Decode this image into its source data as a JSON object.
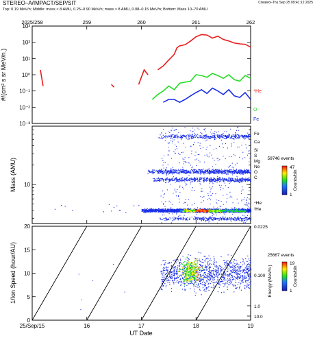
{
  "header": {
    "title": "STEREO–A/IMPACT/SEP/SIT",
    "created": "Created–Thu Sep 25 09:41:12 2025",
    "subtitle": "Top: 0.19 MeV/n; Middle: mass < 8 AMU, 0.25–0.90 MeV/n; mass > 8 AMU, 0.08–0.15 MeV/n; Bottom: Mass 10–70 AMU"
  },
  "chart_data": [
    {
      "type": "line",
      "panel": "top",
      "ylabel": "#/(cm² s sr MeV/n.)",
      "yscale": "log",
      "ylim": [
        0.001,
        1000
      ],
      "yticks": [
        "10⁻³",
        "10⁻²",
        "10⁻¹",
        "10⁰",
        "10¹",
        "10²",
        "10³"
      ],
      "top_axis_ticks": [
        "2025/258",
        "259",
        "260",
        "261",
        "262"
      ],
      "x_range": [
        "2025-09-15",
        "2025-09-19"
      ],
      "series": [
        {
          "name": "⁴He",
          "color": "#e81c1c",
          "segments": [
            [
              [
                15.15,
                2.0
              ],
              [
                15.2,
                0.2
              ]
            ],
            [
              [
                16.45,
                0.25
              ],
              [
                16.5,
                0.17
              ]
            ],
            [
              [
                16.95,
                0.25
              ],
              [
                17.05,
                2.0
              ],
              [
                17.12,
                1.0
              ]
            ],
            [
              [
                17.3,
                2.0
              ],
              [
                17.4,
                3.5
              ],
              [
                17.5,
                8
              ],
              [
                17.55,
                12
              ],
              [
                17.6,
                18
              ],
              [
                17.65,
                45
              ],
              [
                17.7,
                60
              ],
              [
                17.8,
                70
              ],
              [
                17.9,
                120
              ],
              [
                18.0,
                220
              ],
              [
                18.1,
                300
              ],
              [
                18.2,
                280
              ],
              [
                18.3,
                180
              ],
              [
                18.4,
                240
              ],
              [
                18.5,
                150
              ],
              [
                18.6,
                120
              ],
              [
                18.7,
                90
              ],
              [
                18.8,
                80
              ],
              [
                18.9,
                75
              ],
              [
                19.0,
                50
              ]
            ]
          ]
        },
        {
          "name": "O",
          "color": "#22dd22",
          "segments": [
            [
              [
                17.2,
                0.03
              ],
              [
                17.3,
                0.06
              ],
              [
                17.4,
                0.1
              ],
              [
                17.5,
                0.2
              ],
              [
                17.6,
                0.12
              ],
              [
                17.7,
                0.3
              ],
              [
                17.8,
                0.35
              ],
              [
                17.9,
                0.4
              ],
              [
                18.0,
                1.0
              ],
              [
                18.1,
                0.9
              ],
              [
                18.2,
                0.7
              ],
              [
                18.3,
                1.2
              ],
              [
                18.4,
                0.9
              ],
              [
                18.5,
                0.6
              ],
              [
                18.6,
                1.0
              ],
              [
                18.7,
                0.5
              ],
              [
                18.8,
                0.4
              ],
              [
                18.9,
                0.9
              ],
              [
                19.0,
                0.6
              ]
            ]
          ]
        },
        {
          "name": "Fe",
          "color": "#1a2ee8",
          "segments": [
            [
              [
                17.4,
                0.02
              ],
              [
                17.5,
                0.03
              ],
              [
                17.6,
                0.03
              ],
              [
                17.7,
                0.02
              ],
              [
                17.8,
                0.03
              ],
              [
                17.9,
                0.05
              ],
              [
                18.0,
                0.08
              ],
              [
                18.1,
                0.12
              ],
              [
                18.2,
                0.07
              ],
              [
                18.3,
                0.15
              ],
              [
                18.4,
                0.1
              ],
              [
                18.5,
                0.06
              ],
              [
                18.6,
                0.12
              ],
              [
                18.7,
                0.05
              ],
              [
                18.8,
                0.04
              ],
              [
                18.9,
                0.08
              ],
              [
                19.0,
                0.03
              ]
            ]
          ]
        }
      ]
    },
    {
      "type": "scatter",
      "panel": "middle",
      "ylabel": "Mass (AMU)",
      "yscale": "log",
      "ylim": [
        2.5,
        80
      ],
      "yticks": [
        "10"
      ],
      "species_labels": [
        "Fe",
        "Ca",
        "Si",
        "S",
        "Mg",
        "Ne",
        "O",
        "C",
        "⁴He",
        "³He"
      ],
      "colorbar": {
        "events": "59746 events",
        "label": "Counts/bin",
        "min": "1",
        "max": "47"
      },
      "bands": [
        {
          "name": "Fe",
          "mass": 56,
          "x_start": 17.3,
          "x_end": 19.0,
          "density": 0.5
        },
        {
          "name": "O",
          "mass": 16,
          "x_start": 17.1,
          "x_end": 19.0,
          "density": 1.0
        },
        {
          "name": "C",
          "mass": 12,
          "x_start": 17.2,
          "x_end": 19.0,
          "density": 0.7
        },
        {
          "name": "4He",
          "mass": 4,
          "x_start": 17.0,
          "x_end": 19.0,
          "density": 3.0
        },
        {
          "name": "3He",
          "mass": 3,
          "x_start": 17.3,
          "x_end": 19.0,
          "density": 0.4
        }
      ]
    },
    {
      "type": "scatter",
      "panel": "bottom",
      "xlabel": "UT Date",
      "ylabel": "1/Ion Speed (hour/AU)",
      "ylim": [
        0,
        20
      ],
      "yticks": [
        "0",
        "5",
        "10",
        "15",
        "20"
      ],
      "xticks": [
        "25/Sep/15",
        "16",
        "17",
        "18",
        "19"
      ],
      "right_axis": {
        "label": "Energy (MeV/n.)",
        "ticks": [
          "0.0225",
          "0.100",
          "1.0",
          "10.0"
        ]
      },
      "colorbar": {
        "events": "25667 events",
        "label": "Counts/bin",
        "min": "1",
        "max": "19"
      },
      "velocity_lines": [
        {
          "x_start": 15.0,
          "x_end": 16.0
        },
        {
          "x_start": 16.0,
          "x_end": 17.0
        },
        {
          "x_start": 17.0,
          "x_end": 18.0
        },
        {
          "x_start": 18.0,
          "x_end": 19.0
        }
      ]
    }
  ]
}
